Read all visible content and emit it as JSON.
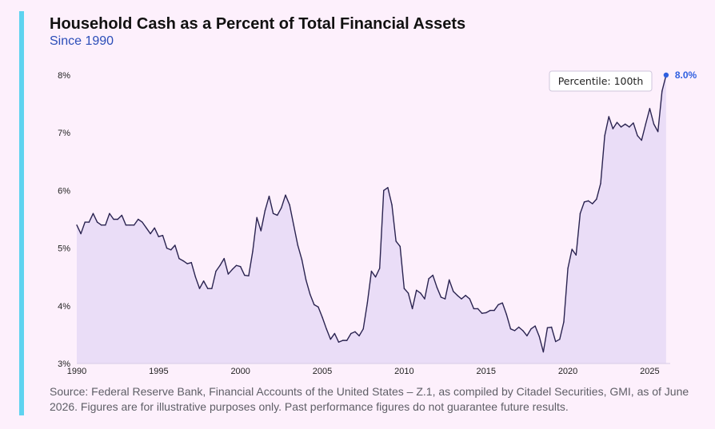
{
  "header": {
    "title": "Household Cash as a Percent of Total Financial Assets",
    "subtitle": "Since 1990"
  },
  "footer": {
    "source": "Source: Federal Reserve Bank, Financial Accounts of the United States – Z.1, as compiled by Citadel Securities, GMI, as of June 2026. Figures are for illustrative purposes only. Past performance figures do not guarantee future results."
  },
  "colors": {
    "accent_bar": "#5ed3f0",
    "line": "#2a2350",
    "area_fill": "#e6d9f6",
    "last_point": "#2f5fe0",
    "subtitle": "#2b4db8"
  },
  "chart_data": {
    "type": "area",
    "title": "Household Cash as a Percent of Total Financial Assets",
    "subtitle": "Since 1990",
    "xlabel": "",
    "ylabel": "",
    "xlim": [
      1990,
      2026.25
    ],
    "ylim": [
      3,
      8
    ],
    "x_ticks": [
      1990,
      1995,
      2000,
      2005,
      2010,
      2015,
      2020,
      2025
    ],
    "y_ticks": [
      3,
      4,
      5,
      6,
      7,
      8
    ],
    "y_tick_labels": [
      "3%",
      "4%",
      "5%",
      "6%",
      "7%",
      "8%"
    ],
    "grid": false,
    "last_point_label": "8.0%",
    "annotation": "Percentile: 100th",
    "series": [
      {
        "values": [
          [
            1990.0,
            5.4
          ],
          [
            1990.25,
            5.25
          ],
          [
            1990.5,
            5.45
          ],
          [
            1990.75,
            5.45
          ],
          [
            1991.0,
            5.6
          ],
          [
            1991.25,
            5.45
          ],
          [
            1991.5,
            5.4
          ],
          [
            1991.75,
            5.4
          ],
          [
            1992.0,
            5.6
          ],
          [
            1992.25,
            5.5
          ],
          [
            1992.5,
            5.5
          ],
          [
            1992.75,
            5.57
          ],
          [
            1993.0,
            5.4
          ],
          [
            1993.25,
            5.4
          ],
          [
            1993.5,
            5.4
          ],
          [
            1993.75,
            5.5
          ],
          [
            1994.0,
            5.45
          ],
          [
            1994.25,
            5.35
          ],
          [
            1994.5,
            5.25
          ],
          [
            1994.75,
            5.35
          ],
          [
            1995.0,
            5.2
          ],
          [
            1995.25,
            5.22
          ],
          [
            1995.5,
            5.0
          ],
          [
            1995.75,
            4.97
          ],
          [
            1996.0,
            5.05
          ],
          [
            1996.25,
            4.82
          ],
          [
            1996.5,
            4.78
          ],
          [
            1996.75,
            4.73
          ],
          [
            1997.0,
            4.75
          ],
          [
            1997.25,
            4.5
          ],
          [
            1997.5,
            4.3
          ],
          [
            1997.75,
            4.43
          ],
          [
            1998.0,
            4.3
          ],
          [
            1998.25,
            4.3
          ],
          [
            1998.5,
            4.6
          ],
          [
            1998.75,
            4.7
          ],
          [
            1999.0,
            4.82
          ],
          [
            1999.25,
            4.55
          ],
          [
            1999.5,
            4.63
          ],
          [
            1999.75,
            4.7
          ],
          [
            2000.0,
            4.68
          ],
          [
            2000.25,
            4.53
          ],
          [
            2000.5,
            4.52
          ],
          [
            2000.75,
            4.95
          ],
          [
            2001.0,
            5.53
          ],
          [
            2001.25,
            5.3
          ],
          [
            2001.5,
            5.65
          ],
          [
            2001.75,
            5.9
          ],
          [
            2002.0,
            5.6
          ],
          [
            2002.25,
            5.57
          ],
          [
            2002.5,
            5.7
          ],
          [
            2002.75,
            5.92
          ],
          [
            2003.0,
            5.75
          ],
          [
            2003.25,
            5.4
          ],
          [
            2003.5,
            5.05
          ],
          [
            2003.75,
            4.8
          ],
          [
            2004.0,
            4.45
          ],
          [
            2004.25,
            4.2
          ],
          [
            2004.5,
            4.02
          ],
          [
            2004.75,
            3.98
          ],
          [
            2005.0,
            3.8
          ],
          [
            2005.25,
            3.6
          ],
          [
            2005.5,
            3.42
          ],
          [
            2005.75,
            3.52
          ],
          [
            2006.0,
            3.37
          ],
          [
            2006.25,
            3.4
          ],
          [
            2006.5,
            3.4
          ],
          [
            2006.75,
            3.52
          ],
          [
            2007.0,
            3.55
          ],
          [
            2007.25,
            3.48
          ],
          [
            2007.5,
            3.6
          ],
          [
            2007.75,
            4.05
          ],
          [
            2008.0,
            4.6
          ],
          [
            2008.25,
            4.5
          ],
          [
            2008.5,
            4.65
          ],
          [
            2008.75,
            6.0
          ],
          [
            2009.0,
            6.05
          ],
          [
            2009.25,
            5.75
          ],
          [
            2009.5,
            5.12
          ],
          [
            2009.75,
            5.03
          ],
          [
            2010.0,
            4.3
          ],
          [
            2010.25,
            4.22
          ],
          [
            2010.5,
            3.95
          ],
          [
            2010.75,
            4.27
          ],
          [
            2011.0,
            4.22
          ],
          [
            2011.25,
            4.12
          ],
          [
            2011.5,
            4.47
          ],
          [
            2011.75,
            4.53
          ],
          [
            2012.0,
            4.32
          ],
          [
            2012.25,
            4.15
          ],
          [
            2012.5,
            4.12
          ],
          [
            2012.75,
            4.45
          ],
          [
            2013.0,
            4.25
          ],
          [
            2013.25,
            4.18
          ],
          [
            2013.5,
            4.12
          ],
          [
            2013.75,
            4.18
          ],
          [
            2014.0,
            4.12
          ],
          [
            2014.25,
            3.95
          ],
          [
            2014.5,
            3.95
          ],
          [
            2014.75,
            3.87
          ],
          [
            2015.0,
            3.88
          ],
          [
            2015.25,
            3.92
          ],
          [
            2015.5,
            3.92
          ],
          [
            2015.75,
            4.02
          ],
          [
            2016.0,
            4.05
          ],
          [
            2016.25,
            3.85
          ],
          [
            2016.5,
            3.6
          ],
          [
            2016.75,
            3.57
          ],
          [
            2017.0,
            3.63
          ],
          [
            2017.25,
            3.57
          ],
          [
            2017.5,
            3.48
          ],
          [
            2017.75,
            3.6
          ],
          [
            2018.0,
            3.65
          ],
          [
            2018.25,
            3.47
          ],
          [
            2018.5,
            3.2
          ],
          [
            2018.75,
            3.62
          ],
          [
            2019.0,
            3.63
          ],
          [
            2019.25,
            3.38
          ],
          [
            2019.5,
            3.42
          ],
          [
            2019.75,
            3.72
          ],
          [
            2020.0,
            4.65
          ],
          [
            2020.25,
            4.98
          ],
          [
            2020.5,
            4.88
          ],
          [
            2020.75,
            5.6
          ],
          [
            2021.0,
            5.8
          ],
          [
            2021.25,
            5.82
          ],
          [
            2021.5,
            5.77
          ],
          [
            2021.75,
            5.85
          ],
          [
            2022.0,
            6.12
          ],
          [
            2022.25,
            6.95
          ],
          [
            2022.5,
            7.28
          ],
          [
            2022.75,
            7.07
          ],
          [
            2023.0,
            7.18
          ],
          [
            2023.25,
            7.1
          ],
          [
            2023.5,
            7.15
          ],
          [
            2023.75,
            7.1
          ],
          [
            2024.0,
            7.17
          ],
          [
            2024.25,
            6.95
          ],
          [
            2024.5,
            6.87
          ],
          [
            2024.75,
            7.15
          ],
          [
            2025.0,
            7.42
          ],
          [
            2025.25,
            7.15
          ],
          [
            2025.5,
            7.02
          ],
          [
            2025.75,
            7.72
          ],
          [
            2026.0,
            8.0
          ]
        ]
      }
    ]
  }
}
